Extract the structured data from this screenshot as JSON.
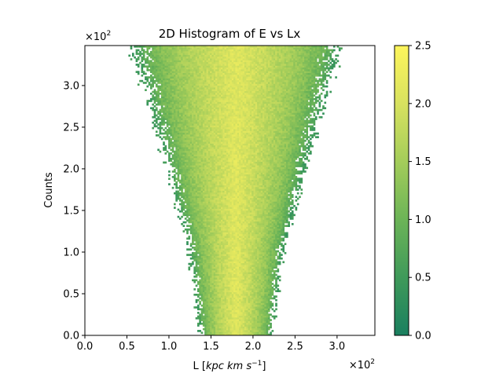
{
  "chart_data": {
    "type": "heatmap",
    "title": "2D Histogram of E vs Lx",
    "xlabel": {
      "prefix": "L [",
      "math": "kpc km s",
      "exponent": "−1",
      "suffix": "]"
    },
    "ylabel": "Counts",
    "x_offset_text": "×10",
    "x_offset_exp": "2",
    "y_offset_text": "×10",
    "y_offset_exp": "2",
    "xlim": [
      0,
      3.45
    ],
    "ylim": [
      0,
      3.48
    ],
    "x_ticks": [
      {
        "value": 0.0,
        "label": "0.0"
      },
      {
        "value": 0.5,
        "label": "0.5"
      },
      {
        "value": 1.0,
        "label": "1.0"
      },
      {
        "value": 1.5,
        "label": "1.5"
      },
      {
        "value": 2.0,
        "label": "2.0"
      },
      {
        "value": 2.5,
        "label": "2.5"
      },
      {
        "value": 3.0,
        "label": "3.0"
      }
    ],
    "y_ticks": [
      {
        "value": 0.0,
        "label": "0.0"
      },
      {
        "value": 0.5,
        "label": "0.5"
      },
      {
        "value": 1.0,
        "label": "1.0"
      },
      {
        "value": 1.5,
        "label": "1.5"
      },
      {
        "value": 2.0,
        "label": "2.0"
      },
      {
        "value": 2.5,
        "label": "2.5"
      },
      {
        "value": 3.0,
        "label": "3.0"
      }
    ],
    "colorbar": {
      "range": [
        0.0,
        2.5
      ],
      "ticks": [
        {
          "value": 0.0,
          "label": "0.0"
        },
        {
          "value": 0.5,
          "label": "0.5"
        },
        {
          "value": 1.0,
          "label": "1.0"
        },
        {
          "value": 1.5,
          "label": "1.5"
        },
        {
          "value": 2.0,
          "label": "2.0"
        },
        {
          "value": 2.5,
          "label": "2.5"
        }
      ],
      "colors": [
        "#1a7f5f",
        "#3f9a5a",
        "#6cb457",
        "#a4cd5a",
        "#d8e25f",
        "#fdf55c"
      ]
    },
    "distribution": {
      "center_x": [
        {
          "y": 0.0,
          "x": 1.8
        },
        {
          "y": 3.48,
          "x": 1.8
        }
      ],
      "outer_halfwidth": [
        {
          "y": 0.0,
          "x": 0.41
        },
        {
          "y": 1.0,
          "x": 0.53
        },
        {
          "y": 2.0,
          "x": 0.78
        },
        {
          "y": 3.0,
          "x": 1.05
        },
        {
          "y": 3.48,
          "x": 1.18
        }
      ],
      "core_value": 2.1,
      "edge_value": 0.5,
      "bins_x": 160,
      "bins_y": 160
    }
  }
}
